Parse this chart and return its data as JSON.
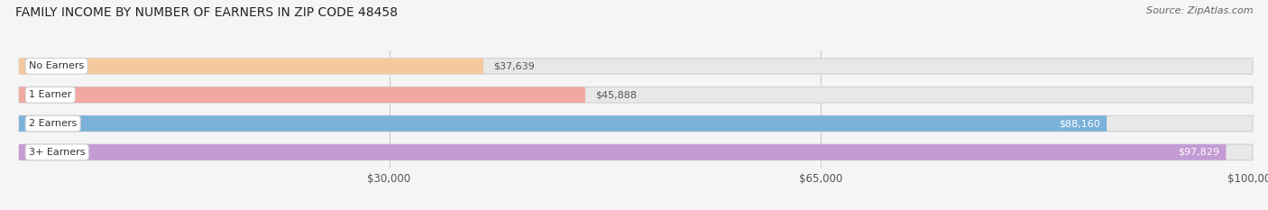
{
  "title": "FAMILY INCOME BY NUMBER OF EARNERS IN ZIP CODE 48458",
  "source": "Source: ZipAtlas.com",
  "categories": [
    "No Earners",
    "1 Earner",
    "2 Earners",
    "3+ Earners"
  ],
  "values": [
    37639,
    45888,
    88160,
    97829
  ],
  "bar_colors": [
    "#f5c99e",
    "#f0a8a0",
    "#7ab2d9",
    "#c49bd4"
  ],
  "label_colors": [
    "#555555",
    "#555555",
    "#ffffff",
    "#ffffff"
  ],
  "xmin": 0,
  "xmax": 100000,
  "xticks": [
    30000,
    65000,
    100000
  ],
  "xtick_labels": [
    "$30,000",
    "$65,000",
    "$100,000"
  ],
  "background_color": "#f5f5f5",
  "bar_bg_color": "#e8e8e8",
  "bar_border_color": "#d0d0d8",
  "title_fontsize": 10,
  "source_fontsize": 8,
  "tick_fontsize": 8.5,
  "label_fontsize": 8,
  "category_fontsize": 8
}
